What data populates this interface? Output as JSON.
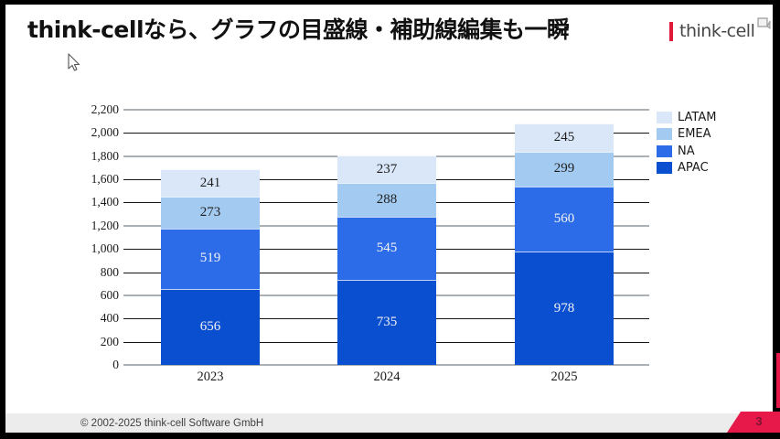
{
  "slide": {
    "title": "think-cellなら、グラフの目盛線・補助線編集も一瞬",
    "logo_text": "think-cell",
    "footer": {
      "copyright": "© 2002-2025 think-cell Software GmbH",
      "page_number": "3"
    },
    "accent_color": "#e6194a"
  },
  "chart_data": {
    "type": "bar",
    "stacked": true,
    "title": "",
    "xlabel": "",
    "ylabel": "",
    "categories": [
      "2023",
      "2024",
      "2025"
    ],
    "series": [
      {
        "name": "APAC",
        "color": "#0b4fd1",
        "label_color": "#f2f2f2",
        "values": [
          656,
          735,
          978
        ]
      },
      {
        "name": "NA",
        "color": "#2d6ce9",
        "label_color": "#f2f2f2",
        "values": [
          519,
          545,
          560
        ]
      },
      {
        "name": "EMEA",
        "color": "#a3cbf1",
        "label_color": "#1f1f1f",
        "values": [
          273,
          288,
          299
        ]
      },
      {
        "name": "LATAM",
        "color": "#d9e7f8",
        "label_color": "#1f1f1f",
        "values": [
          241,
          237,
          245
        ]
      }
    ],
    "legend": [
      "LATAM",
      "EMEA",
      "NA",
      "APAC"
    ],
    "legend_position": "top-right",
    "y_axis": {
      "min": 0,
      "max": 2200,
      "step": 200,
      "tick_labels": [
        "0",
        "200",
        "400",
        "600",
        "800",
        "1,000",
        "1,200",
        "1,400",
        "1,600",
        "1,800",
        "2,000",
        "2,200"
      ]
    },
    "gridlines": {
      "gray_values": [
        2200,
        1800,
        1200,
        600,
        0
      ],
      "black_values": [
        2000,
        1600,
        1400,
        1000,
        800,
        400,
        200
      ]
    }
  }
}
